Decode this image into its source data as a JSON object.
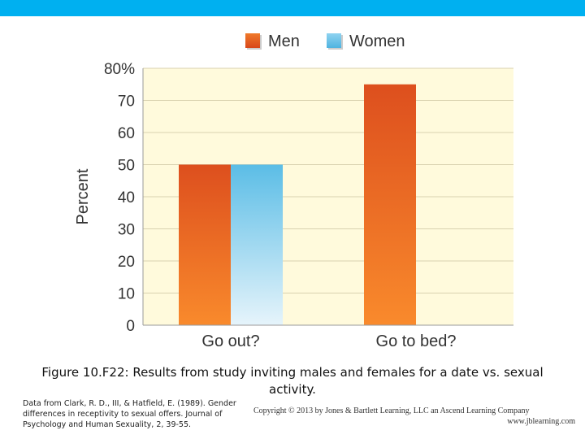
{
  "page": {
    "accent_color": "#00b0f0"
  },
  "chart_data": {
    "type": "bar",
    "categories": [
      "Go out?",
      "Go to bed?"
    ],
    "series": [
      {
        "name": "Men",
        "values": [
          50,
          75
        ],
        "color": "#e8581c"
      },
      {
        "name": "Women",
        "values": [
          50,
          0
        ],
        "color": "#6ec4e8"
      }
    ],
    "title": "",
    "xlabel": "",
    "ylabel": "Percent",
    "ylim": [
      0,
      80
    ],
    "yticks": [
      "0",
      "10",
      "20",
      "30",
      "40",
      "50",
      "60",
      "70",
      "80%"
    ],
    "grid": true,
    "legend": "top"
  },
  "caption": "Figure 10.F22: Results from study inviting males and females for a date vs. sexual activity.",
  "source": "Data from Clark, R. D., III, & Hatfield, E. (1989). Gender differences in receptivity to sexual offers. Journal of Psychology and Human Sexuality, 2, 39-55.",
  "copyright": {
    "line1": "Copyright © 2013 by Jones & Bartlett Learning, LLC an Ascend Learning Company",
    "line2": "www.jblearning.com"
  }
}
